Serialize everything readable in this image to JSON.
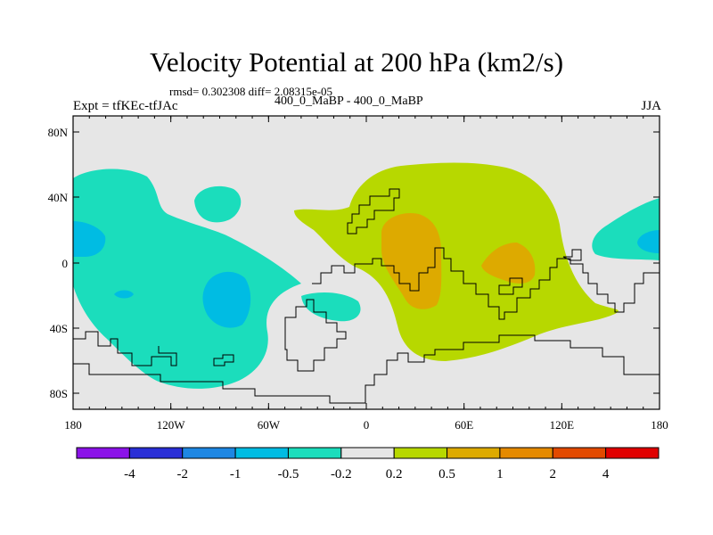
{
  "title": "Velocity Potential at 200 hPa (km2/s)",
  "stats": "rmsd= 0.302308 diff= 2.08315e-05",
  "experiment": "Expt = tfKEc-tfJAc",
  "case": "400_0_MaBP - 400_0_MaBP",
  "season": "JJA",
  "y_ticks": [
    "80N",
    "40N",
    "0",
    "40S",
    "80S"
  ],
  "x_ticks": [
    "180",
    "120W",
    "60W",
    "0",
    "60E",
    "120E",
    "180"
  ],
  "colorbar": {
    "colors": [
      "#8B12E8",
      "#2A2FD6",
      "#1E87E3",
      "#00BCE3",
      "#1BDDBC",
      "#E6E6E6",
      "#B7D800",
      "#DDAA00",
      "#E58A00",
      "#E24A00",
      "#E00000"
    ],
    "labels": [
      "-4",
      "-2",
      "-1",
      "-0.5",
      "-0.2",
      "0.2",
      "0.5",
      "1",
      "2",
      "4"
    ]
  },
  "field_colors": {
    "background": "#E6E6E6",
    "neg_weak": "#1BDDBC",
    "neg_mid": "#00BCE3",
    "pos_weak": "#B7D800",
    "pos_mid": "#DDAA00"
  }
}
